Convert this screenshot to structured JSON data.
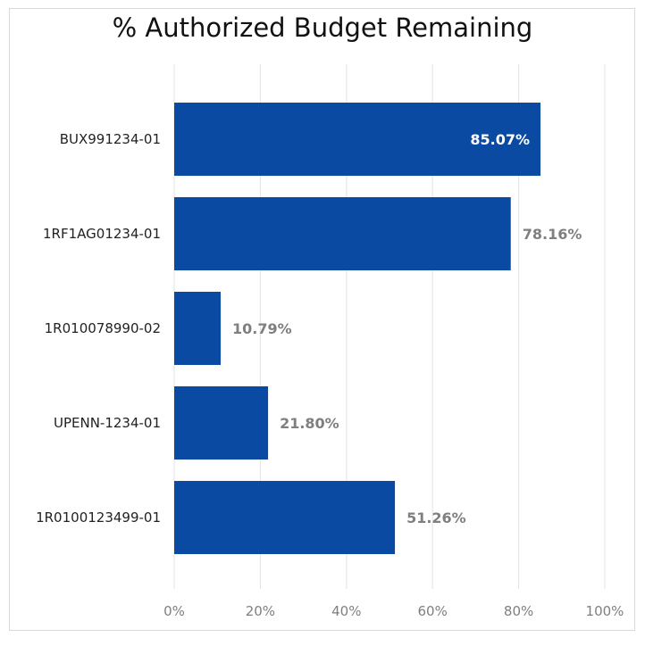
{
  "chart_data": {
    "type": "bar",
    "orientation": "horizontal",
    "title": "% Authorized Budget Remaining",
    "categories": [
      "BUX991234-01",
      "1RF1AG01234-01",
      "1R010078990-02",
      "UPENN-1234-01",
      "1R0100123499-01"
    ],
    "values": [
      85.07,
      78.16,
      10.79,
      21.8,
      51.26
    ],
    "data_labels": [
      "85.07%",
      "78.16%",
      "10.79%",
      "21.80%",
      "51.26%"
    ],
    "xlim": [
      0,
      100
    ],
    "xticks": [
      0,
      20,
      40,
      60,
      80,
      100
    ],
    "xtick_labels": [
      "0%",
      "20%",
      "40%",
      "60%",
      "80%",
      "100%"
    ],
    "xlabel": "",
    "ylabel": "",
    "grid": "vertical",
    "legend": "none",
    "colors": {
      "bar": "#0b4aa2",
      "gridline": "#e3e3e3",
      "label_outside": "#7f7f7f",
      "label_inside": "#ffffff"
    }
  }
}
